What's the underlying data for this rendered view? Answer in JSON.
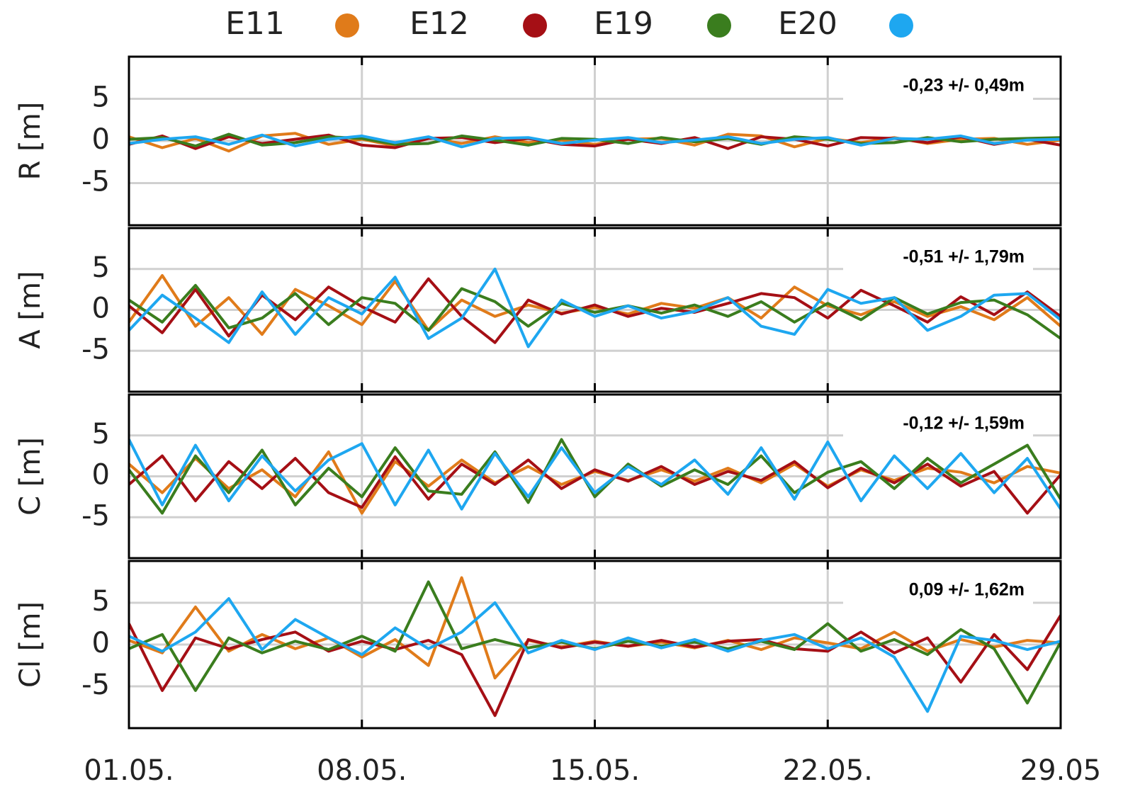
{
  "chart_data": [
    {
      "type": "line",
      "ylabel": "R [m]",
      "annotation": "-0,23 +/- 0,49m",
      "x": [
        1,
        2,
        3,
        4,
        5,
        6,
        7,
        8,
        9,
        10,
        11,
        12,
        13,
        14,
        15,
        16,
        17,
        18,
        19,
        20,
        21,
        22,
        23,
        24,
        25,
        26,
        27,
        28,
        29
      ],
      "xlim": [
        1,
        29
      ],
      "xticks": [
        1,
        8,
        15,
        22,
        29
      ],
      "ylim": [
        -10,
        10
      ],
      "yticks": [
        -5,
        0,
        5
      ],
      "grid": true,
      "series": [
        {
          "name": "E11",
          "color": "#e07b1a",
          "values": [
            0.5,
            -0.8,
            0.3,
            -1.2,
            0.6,
            0.9,
            -0.4,
            0.2,
            -0.6,
            0.4,
            -0.3,
            0.5,
            -0.2,
            0.1,
            -0.4,
            0.2,
            0.3,
            -0.5,
            0.8,
            0.6,
            -0.7,
            0.3,
            -0.2,
            0.4,
            -0.3,
            0.2,
            0.3,
            -0.4,
            0.1
          ]
        },
        {
          "name": "E12",
          "color": "#a50f15",
          "values": [
            -0.4,
            0.6,
            -0.9,
            0.5,
            -0.3,
            0.2,
            0.7,
            -0.5,
            -0.8,
            0.3,
            0.4,
            -0.2,
            0.3,
            -0.4,
            -0.6,
            0.2,
            -0.3,
            0.4,
            -0.9,
            0.5,
            0.2,
            -0.6,
            0.4,
            0.3,
            -0.2,
            0.5,
            -0.4,
            0.2,
            -0.5
          ]
        },
        {
          "name": "E19",
          "color": "#3a7d1e",
          "values": [
            0.2,
            0.4,
            -0.6,
            0.8,
            -0.5,
            -0.2,
            0.5,
            0.3,
            -0.4,
            -0.3,
            0.6,
            0.1,
            -0.5,
            0.3,
            0.2,
            -0.3,
            0.4,
            -0.1,
            0.3,
            -0.4,
            0.5,
            0.2,
            -0.3,
            -0.2,
            0.4,
            -0.1,
            0.2,
            0.3,
            0.4
          ]
        },
        {
          "name": "E20",
          "color": "#1ea7f0",
          "values": [
            -0.3,
            0.2,
            0.5,
            -0.4,
            0.7,
            -0.6,
            0.2,
            0.6,
            -0.2,
            0.5,
            -0.7,
            0.3,
            0.4,
            -0.3,
            0.1,
            0.4,
            -0.2,
            0.1,
            0.5,
            -0.3,
            0.2,
            0.4,
            -0.5,
            0.3,
            0.2,
            0.6,
            -0.3,
            0.1,
            0.2
          ]
        }
      ]
    },
    {
      "type": "line",
      "ylabel": "A [m]",
      "annotation": "-0,51 +/- 1,79m",
      "x": [
        1,
        2,
        3,
        4,
        5,
        6,
        7,
        8,
        9,
        10,
        11,
        12,
        13,
        14,
        15,
        16,
        17,
        18,
        19,
        20,
        21,
        22,
        23,
        24,
        25,
        26,
        27,
        28,
        29
      ],
      "xlim": [
        1,
        29
      ],
      "xticks": [
        1,
        8,
        15,
        22,
        29
      ],
      "ylim": [
        -10,
        10
      ],
      "yticks": [
        -5,
        0,
        5
      ],
      "grid": true,
      "series": [
        {
          "color": "#e07b1a",
          "values": [
            -1.5,
            4.2,
            -2.0,
            1.5,
            -3.0,
            2.5,
            0.5,
            -1.8,
            3.5,
            -2.5,
            1.2,
            -0.8,
            0.6,
            -0.4,
            0.3,
            -0.5,
            0.8,
            0.2,
            1.5,
            -1.0,
            2.8,
            0.5,
            -0.6,
            1.0,
            -0.8,
            0.4,
            -1.2,
            1.5,
            -2.0
          ]
        },
        {
          "color": "#a50f15",
          "values": [
            0.5,
            -2.8,
            2.5,
            -3.2,
            1.8,
            -1.2,
            2.8,
            0.4,
            -1.5,
            3.8,
            -0.8,
            -4.0,
            1.2,
            -0.5,
            0.6,
            -0.8,
            0.2,
            -0.3,
            0.8,
            2.0,
            1.5,
            -1.0,
            2.4,
            0.5,
            -1.5,
            1.6,
            -0.6,
            2.2,
            -0.8
          ]
        },
        {
          "color": "#3a7d1e",
          "values": [
            1.2,
            -1.5,
            3.0,
            -2.2,
            -1.0,
            2.0,
            -1.8,
            1.5,
            0.8,
            -2.5,
            2.6,
            1.0,
            -2.0,
            0.8,
            -0.3,
            0.5,
            -0.4,
            0.6,
            -0.8,
            1.0,
            -1.5,
            0.8,
            -1.2,
            1.5,
            -0.5,
            0.9,
            1.2,
            -0.6,
            -3.5
          ]
        },
        {
          "color": "#1ea7f0",
          "values": [
            -2.5,
            1.8,
            -1.0,
            -4.0,
            2.2,
            -3.0,
            1.5,
            -0.5,
            4.0,
            -3.5,
            -1.0,
            5.0,
            -4.5,
            1.2,
            -0.8,
            0.5,
            -1.0,
            -0.2,
            1.5,
            -2.0,
            -3.0,
            2.5,
            0.8,
            1.5,
            -2.5,
            -0.8,
            1.8,
            2.0,
            -1.2
          ]
        }
      ]
    },
    {
      "type": "line",
      "ylabel": "C [m]",
      "annotation": "-0,12 +/- 1,59m",
      "x": [
        1,
        2,
        3,
        4,
        5,
        6,
        7,
        8,
        9,
        10,
        11,
        12,
        13,
        14,
        15,
        16,
        17,
        18,
        19,
        20,
        21,
        22,
        23,
        24,
        25,
        26,
        27,
        28,
        29
      ],
      "xlim": [
        1,
        29
      ],
      "xticks": [
        1,
        8,
        15,
        22,
        29
      ],
      "ylim": [
        -10,
        10
      ],
      "yticks": [
        -5,
        0,
        5
      ],
      "grid": true,
      "series": [
        {
          "color": "#e07b1a",
          "values": [
            1.5,
            -2.0,
            2.2,
            -1.5,
            0.8,
            -2.5,
            3.0,
            -4.5,
            1.8,
            -1.2,
            2.0,
            -0.8,
            1.2,
            -1.0,
            0.6,
            -0.5,
            0.8,
            -0.6,
            1.0,
            -0.8,
            1.5,
            -1.2,
            0.8,
            -0.5,
            1.0,
            0.5,
            -0.8,
            1.2,
            0.4
          ]
        },
        {
          "color": "#a50f15",
          "values": [
            -1.0,
            2.5,
            -3.0,
            1.8,
            -1.5,
            2.2,
            -2.0,
            -3.8,
            2.4,
            -2.8,
            1.5,
            -1.0,
            2.0,
            -1.5,
            0.8,
            -0.6,
            1.2,
            -1.0,
            0.6,
            -0.5,
            1.8,
            -1.4,
            1.0,
            -0.8,
            1.5,
            -1.2,
            0.6,
            -4.5,
            0.2
          ]
        },
        {
          "color": "#3a7d1e",
          "values": [
            0.8,
            -4.5,
            2.5,
            -2.0,
            3.2,
            -3.5,
            1.0,
            -2.5,
            3.5,
            -1.8,
            -2.2,
            3.0,
            -3.2,
            4.5,
            -2.5,
            1.5,
            -1.2,
            0.8,
            -1.0,
            2.5,
            -2.0,
            0.5,
            1.8,
            -1.5,
            2.2,
            -0.8,
            1.5,
            3.8,
            -2.8
          ]
        },
        {
          "color": "#1ea7f0",
          "values": [
            4.5,
            -3.5,
            3.8,
            -3.0,
            2.5,
            -1.8,
            2.0,
            4.0,
            -3.5,
            3.2,
            -4.0,
            2.8,
            -2.5,
            3.5,
            -2.0,
            1.2,
            -1.0,
            2.0,
            -2.2,
            3.5,
            -2.8,
            4.2,
            -3.0,
            2.5,
            -1.5,
            2.8,
            -2.0,
            2.2,
            -4.0
          ]
        }
      ]
    },
    {
      "type": "line",
      "ylabel": "Cl [m]",
      "annotation": "0,09 +/- 1,62m",
      "x": [
        1,
        2,
        3,
        4,
        5,
        6,
        7,
        8,
        9,
        10,
        11,
        12,
        13,
        14,
        15,
        16,
        17,
        18,
        19,
        20,
        21,
        22,
        23,
        24,
        25,
        26,
        27,
        28,
        29
      ],
      "xlim": [
        1,
        29
      ],
      "xticks": [
        {
          "value": 1,
          "label": "01.05."
        },
        {
          "value": 8,
          "label": "08.05."
        },
        {
          "value": 15,
          "label": "15.05."
        },
        {
          "value": 22,
          "label": "22.05."
        },
        {
          "value": 29,
          "label": "29.05"
        }
      ],
      "ylim": [
        -10,
        10
      ],
      "yticks": [
        -5,
        0,
        5
      ],
      "grid": true,
      "series": [
        {
          "color": "#e07b1a",
          "values": [
            0.5,
            -1.0,
            4.5,
            -0.8,
            1.2,
            -0.5,
            0.8,
            -1.5,
            0.6,
            -2.5,
            8.0,
            -4.0,
            0.5,
            -0.3,
            0.4,
            -0.2,
            0.3,
            -0.4,
            0.5,
            -0.6,
            0.8,
            0.2,
            -0.5,
            1.5,
            -0.8,
            0.6,
            -0.3,
            0.5,
            0.2
          ]
        },
        {
          "color": "#a50f15",
          "values": [
            2.5,
            -5.5,
            0.8,
            -0.5,
            0.6,
            1.5,
            -0.8,
            0.4,
            -0.6,
            0.5,
            -1.2,
            -8.5,
            0.6,
            -0.4,
            0.3,
            -0.2,
            0.5,
            -0.3,
            0.4,
            0.6,
            -0.5,
            -0.8,
            1.5,
            -1.0,
            0.8,
            -4.5,
            1.2,
            -3.0,
            3.5
          ]
        },
        {
          "color": "#3a7d1e",
          "values": [
            -0.5,
            1.2,
            -5.5,
            0.8,
            -1.0,
            0.4,
            -0.6,
            1.0,
            -0.8,
            7.5,
            -0.5,
            0.6,
            -0.4,
            0.3,
            -0.5,
            0.4,
            -0.2,
            0.3,
            -0.5,
            0.4,
            -0.6,
            2.5,
            -0.8,
            0.6,
            -1.2,
            1.8,
            -0.5,
            -7.0,
            0.3
          ]
        },
        {
          "color": "#1ea7f0",
          "values": [
            1.0,
            -0.8,
            1.5,
            5.5,
            -0.6,
            3.0,
            0.8,
            -1.2,
            2.0,
            -0.5,
            1.5,
            5.0,
            -1.0,
            0.5,
            -0.6,
            0.8,
            -0.4,
            0.6,
            -0.8,
            0.5,
            1.2,
            -0.5,
            0.8,
            -1.5,
            -8.0,
            1.0,
            0.5,
            -0.6,
            0.4
          ]
        }
      ]
    }
  ]
}
